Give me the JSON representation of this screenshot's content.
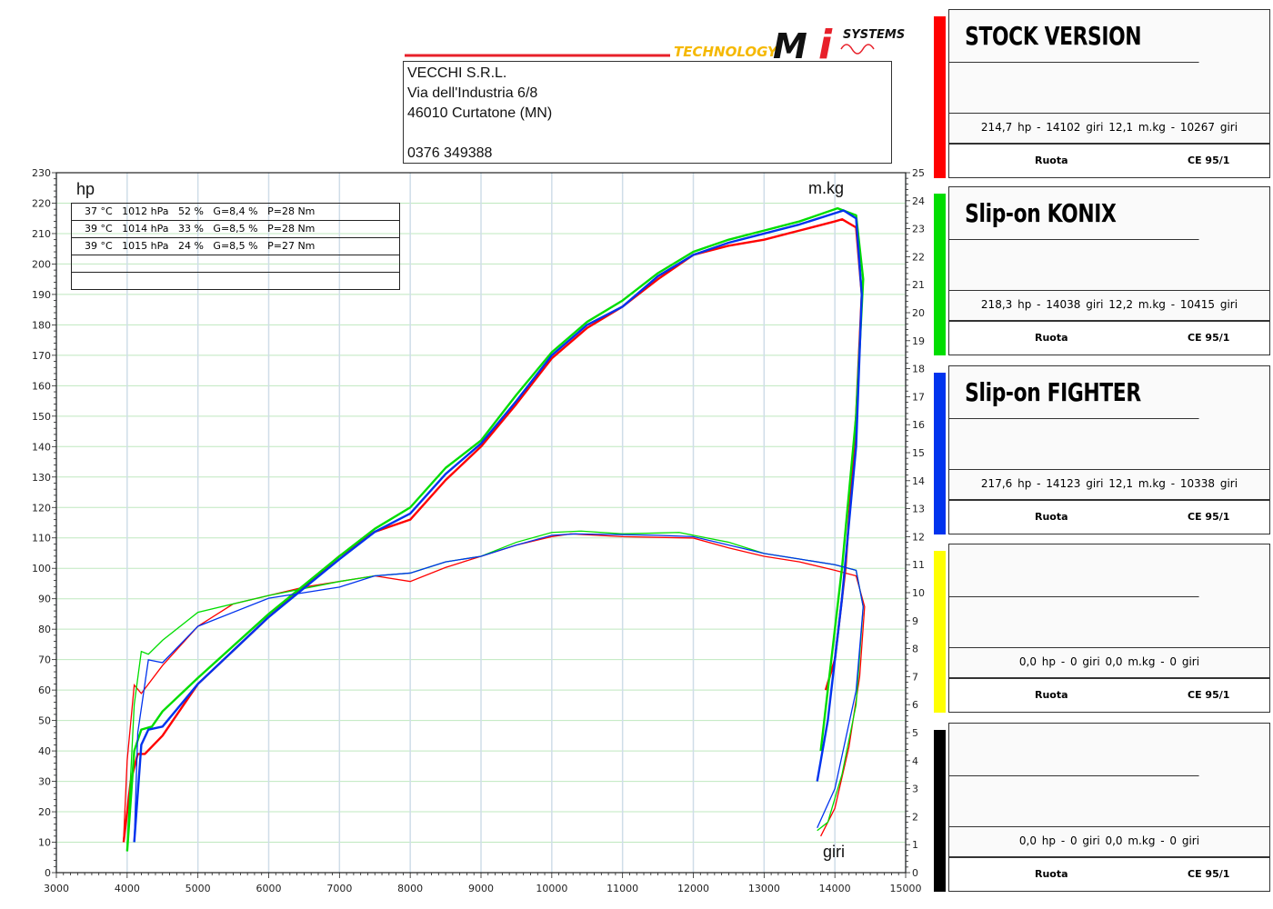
{
  "header": {
    "logo_text": "TECHNOLOGY MI SYSTEMS",
    "address": [
      "VECCHI S.R.L.",
      "Via dell'Industria 6/8",
      "46010 Curtatone (MN)",
      "",
      "0376 349388"
    ]
  },
  "conditions": [
    "37 °C   1012 hPa   52 %   G=8,4 %   P=28 Nm",
    "39 °C   1014 hPa   33 %   G=8,5 %   P=28 Nm",
    "39 °C   1015 hPa   24 %   G=8,5 %   P=27 Nm",
    "",
    ""
  ],
  "legend": [
    {
      "title": "STOCK VERSION",
      "values": "214,7 hp - 14102 giri    12,1 m.kg - 10267 giri",
      "wheel": "Ruota",
      "standard": "CE 95/1",
      "color": "#ff0000"
    },
    {
      "title": "Slip-on KONIX",
      "values": "218,3 hp - 14038 giri    12,2 m.kg - 10415 giri",
      "wheel": "Ruota",
      "standard": "CE 95/1",
      "color": "#00dd00"
    },
    {
      "title": "Slip-on FIGHTER",
      "values": "217,6 hp - 14123 giri    12,1 m.kg - 10338 giri",
      "wheel": "Ruota",
      "standard": "CE 95/1",
      "color": "#0033ee"
    },
    {
      "title": "",
      "values": "0,0 hp - 0 giri    0,0 m.kg - 0 giri",
      "wheel": "Ruota",
      "standard": "CE 95/1",
      "color": "#ffff00"
    },
    {
      "title": "",
      "values": "0,0 hp - 0 giri    0,0 m.kg - 0 giri",
      "wheel": "Ruota",
      "standard": "CE 95/1",
      "color": "#000000"
    }
  ],
  "chart_data": {
    "type": "line",
    "xlabel": "giri",
    "ylabel": "hp",
    "y2label": "m.kg",
    "xlim": [
      3000,
      15000
    ],
    "ylim": [
      0,
      230
    ],
    "y2lim": [
      0,
      25
    ],
    "grid": true,
    "xticks": [
      3000,
      4000,
      5000,
      6000,
      7000,
      8000,
      9000,
      10000,
      11000,
      12000,
      13000,
      14000,
      15000
    ],
    "series": [
      {
        "legend": "STOCK VERSION",
        "color": "#ff0000",
        "power_hp": [
          [
            3950,
            10
          ],
          [
            4050,
            30
          ],
          [
            4150,
            39
          ],
          [
            4250,
            39
          ],
          [
            4500,
            45
          ],
          [
            5000,
            62
          ],
          [
            6000,
            84
          ],
          [
            7000,
            104
          ],
          [
            7500,
            112
          ],
          [
            8000,
            116
          ],
          [
            8500,
            129
          ],
          [
            9000,
            140
          ],
          [
            9500,
            154
          ],
          [
            10000,
            169
          ],
          [
            10500,
            179
          ],
          [
            11000,
            186
          ],
          [
            11500,
            195
          ],
          [
            12000,
            203
          ],
          [
            12500,
            206
          ],
          [
            13000,
            208
          ],
          [
            13500,
            211
          ],
          [
            14000,
            214
          ],
          [
            14102,
            214.7
          ],
          [
            14300,
            212
          ],
          [
            14380,
            190
          ],
          [
            14300,
            150
          ],
          [
            14150,
            100
          ],
          [
            14000,
            70
          ],
          [
            13870,
            60
          ]
        ],
        "torque_mkg": [
          [
            3950,
            1.2
          ],
          [
            4000,
            4
          ],
          [
            4100,
            6.7
          ],
          [
            4200,
            6.4
          ],
          [
            4500,
            7.4
          ],
          [
            5000,
            8.8
          ],
          [
            5500,
            9.6
          ],
          [
            6000,
            9.9
          ],
          [
            6500,
            10.2
          ],
          [
            7000,
            10.4
          ],
          [
            7500,
            10.6
          ],
          [
            8000,
            10.4
          ],
          [
            8500,
            10.9
          ],
          [
            9000,
            11.3
          ],
          [
            9500,
            11.7
          ],
          [
            10000,
            12.0
          ],
          [
            10267,
            12.1
          ],
          [
            11000,
            12.0
          ],
          [
            12000,
            11.95
          ],
          [
            12500,
            11.6
          ],
          [
            13000,
            11.3
          ],
          [
            13500,
            11.1
          ],
          [
            14000,
            10.8
          ],
          [
            14300,
            10.6
          ],
          [
            14420,
            9.5
          ],
          [
            14350,
            7
          ],
          [
            14200,
            4.5
          ],
          [
            14000,
            2.3
          ],
          [
            13800,
            1.3
          ]
        ]
      },
      {
        "legend": "Slip-on KONIX",
        "color": "#00dd00",
        "power_hp": [
          [
            4000,
            7
          ],
          [
            4100,
            40
          ],
          [
            4200,
            47
          ],
          [
            4350,
            48
          ],
          [
            4500,
            53
          ],
          [
            5000,
            64
          ],
          [
            6000,
            85
          ],
          [
            7000,
            104
          ],
          [
            7500,
            113
          ],
          [
            8000,
            120
          ],
          [
            8500,
            133
          ],
          [
            9000,
            142
          ],
          [
            9500,
            157
          ],
          [
            10000,
            171
          ],
          [
            10500,
            181
          ],
          [
            11000,
            188
          ],
          [
            11500,
            197
          ],
          [
            12000,
            204
          ],
          [
            12500,
            208
          ],
          [
            13000,
            211
          ],
          [
            13500,
            214
          ],
          [
            14038,
            218.3
          ],
          [
            14300,
            216
          ],
          [
            14400,
            195
          ],
          [
            14300,
            150
          ],
          [
            14100,
            100
          ],
          [
            13900,
            60
          ],
          [
            13800,
            40
          ]
        ],
        "torque_mkg": [
          [
            4000,
            1
          ],
          [
            4100,
            6
          ],
          [
            4200,
            7.9
          ],
          [
            4300,
            7.8
          ],
          [
            4500,
            8.3
          ],
          [
            5000,
            9.3
          ],
          [
            6000,
            9.9
          ],
          [
            7000,
            10.4
          ],
          [
            7500,
            10.6
          ],
          [
            8000,
            10.7
          ],
          [
            8500,
            11.1
          ],
          [
            9000,
            11.3
          ],
          [
            9500,
            11.8
          ],
          [
            10000,
            12.15
          ],
          [
            10415,
            12.2
          ],
          [
            11000,
            12.1
          ],
          [
            11800,
            12.15
          ],
          [
            12500,
            11.8
          ],
          [
            13000,
            11.4
          ],
          [
            13500,
            11.2
          ],
          [
            14000,
            11.0
          ],
          [
            14300,
            10.8
          ],
          [
            14400,
            9.5
          ],
          [
            14300,
            6
          ],
          [
            14100,
            3.5
          ],
          [
            13900,
            1.8
          ],
          [
            13750,
            1.5
          ]
        ]
      },
      {
        "legend": "Slip-on FIGHTER",
        "color": "#0033ee",
        "power_hp": [
          [
            4100,
            10
          ],
          [
            4200,
            42
          ],
          [
            4300,
            47
          ],
          [
            4500,
            48
          ],
          [
            5000,
            62
          ],
          [
            6000,
            84
          ],
          [
            7000,
            103
          ],
          [
            7500,
            112
          ],
          [
            8000,
            118
          ],
          [
            8500,
            131
          ],
          [
            9000,
            141
          ],
          [
            9500,
            155
          ],
          [
            10000,
            170
          ],
          [
            10500,
            180
          ],
          [
            11000,
            186
          ],
          [
            11500,
            196
          ],
          [
            12000,
            203
          ],
          [
            12500,
            207
          ],
          [
            13000,
            210
          ],
          [
            13500,
            213
          ],
          [
            14123,
            217.6
          ],
          [
            14300,
            215
          ],
          [
            14380,
            190
          ],
          [
            14300,
            140
          ],
          [
            14100,
            90
          ],
          [
            13900,
            50
          ],
          [
            13750,
            30
          ]
        ],
        "torque_mkg": [
          [
            4100,
            1.1
          ],
          [
            4150,
            5
          ],
          [
            4300,
            7.6
          ],
          [
            4500,
            7.5
          ],
          [
            5000,
            8.8
          ],
          [
            6000,
            9.8
          ],
          [
            7000,
            10.2
          ],
          [
            7500,
            10.6
          ],
          [
            8000,
            10.7
          ],
          [
            8500,
            11.1
          ],
          [
            9000,
            11.3
          ],
          [
            9500,
            11.7
          ],
          [
            10000,
            12.05
          ],
          [
            10338,
            12.1
          ],
          [
            11500,
            12.05
          ],
          [
            12000,
            12.0
          ],
          [
            12500,
            11.7
          ],
          [
            13000,
            11.4
          ],
          [
            13500,
            11.2
          ],
          [
            14000,
            11.0
          ],
          [
            14300,
            10.8
          ],
          [
            14400,
            9.5
          ],
          [
            14300,
            6.5
          ],
          [
            14000,
            3
          ],
          [
            13750,
            1.6
          ]
        ]
      }
    ]
  }
}
